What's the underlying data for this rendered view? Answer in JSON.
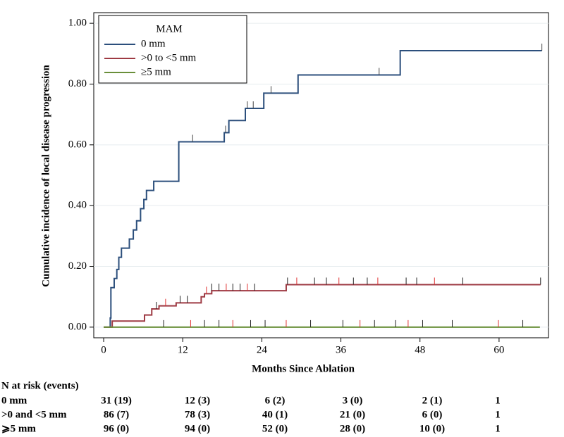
{
  "chart_data": {
    "type": "step",
    "y_label": "Cumulative incidence of local disease progression",
    "x_label": "Months Since Ablation",
    "legend_title": "MAM",
    "xlim": [
      -1.5,
      67.5
    ],
    "xticks": [
      0,
      12,
      24,
      36,
      48,
      60
    ],
    "ylim": [
      -0.035,
      1.035
    ],
    "yticks": [
      {
        "value": 0,
        "label": "0.00"
      },
      {
        "value": 0.2,
        "label": "0.20"
      },
      {
        "value": 0.4,
        "label": "0.40"
      },
      {
        "value": 0.6,
        "label": "0.60"
      },
      {
        "value": 0.8,
        "label": "0.80"
      },
      {
        "value": 1,
        "label": "1.00"
      }
    ],
    "grid": true,
    "legend": "top-left",
    "series": [
      {
        "name": "0 mm",
        "color": "#2c4f7c",
        "x": [
          0,
          1.0,
          1.1,
          1.6,
          2.0,
          2.3,
          2.7,
          3.9,
          4.5,
          5.0,
          5.6,
          6.1,
          6.5,
          7.6,
          11.4,
          18.3,
          19.0,
          21.5,
          24.3,
          29.5,
          45.0,
          66.5
        ],
        "values": [
          0,
          0.03,
          0.13,
          0.16,
          0.19,
          0.23,
          0.26,
          0.29,
          0.32,
          0.35,
          0.39,
          0.42,
          0.45,
          0.48,
          0.61,
          0.64,
          0.68,
          0.72,
          0.77,
          0.83,
          0.91,
          0.91
        ],
        "censored": [
          13.5,
          18.5,
          21.8,
          22.7,
          25.4,
          41.8,
          66.5
        ]
      },
      {
        "name": ">0 to <5 mm",
        "color": "#9e3a43",
        "x": [
          0,
          1.3,
          6.2,
          7.3,
          8.4,
          11.0,
          14.8,
          15.3,
          16.4,
          27.7,
          66.3
        ],
        "values": [
          0,
          0.02,
          0.04,
          0.06,
          0.07,
          0.08,
          0.1,
          0.11,
          0.12,
          0.14,
          0.14
        ],
        "censored": [
          8.0,
          9.4,
          11.6,
          12.7,
          15.6,
          16.4,
          17.5,
          18.6,
          19.6,
          20.7,
          21.8,
          22.9,
          27.9,
          29.3,
          32.0,
          33.8,
          35.7,
          37.9,
          40.0,
          41.6,
          45.9,
          47.5,
          50.2,
          54.5,
          66.3
        ]
      },
      {
        "name": "≥5 mm",
        "color": "#6a8f3a",
        "x": [
          0,
          66.2
        ],
        "values": [
          0,
          0
        ],
        "censored": [
          9.1,
          13.2,
          15.3,
          17.5,
          19.6,
          22.3,
          24.5,
          27.7,
          31.4,
          36.3,
          38.9,
          41.1,
          44.3,
          46.2,
          48.4,
          52.9,
          59.9,
          63.6
        ]
      }
    ]
  },
  "risk_table": {
    "title": "N at risk (events)",
    "rows": [
      {
        "label": "0 mm",
        "values": [
          "31 (19)",
          "12 (3)",
          "6 (2)",
          "3 (0)",
          "2 (1)",
          "1"
        ]
      },
      {
        "label": ">0 and <5 mm",
        "values": [
          "86 (7)",
          "78 (3)",
          "40 (1)",
          "21 (0)",
          "6 (0)",
          "1"
        ]
      },
      {
        "label": "⩾5 mm",
        "values": [
          "96 (0)",
          "94 (0)",
          "52 (0)",
          "28 (0)",
          "10 (0)",
          "1"
        ]
      }
    ]
  }
}
